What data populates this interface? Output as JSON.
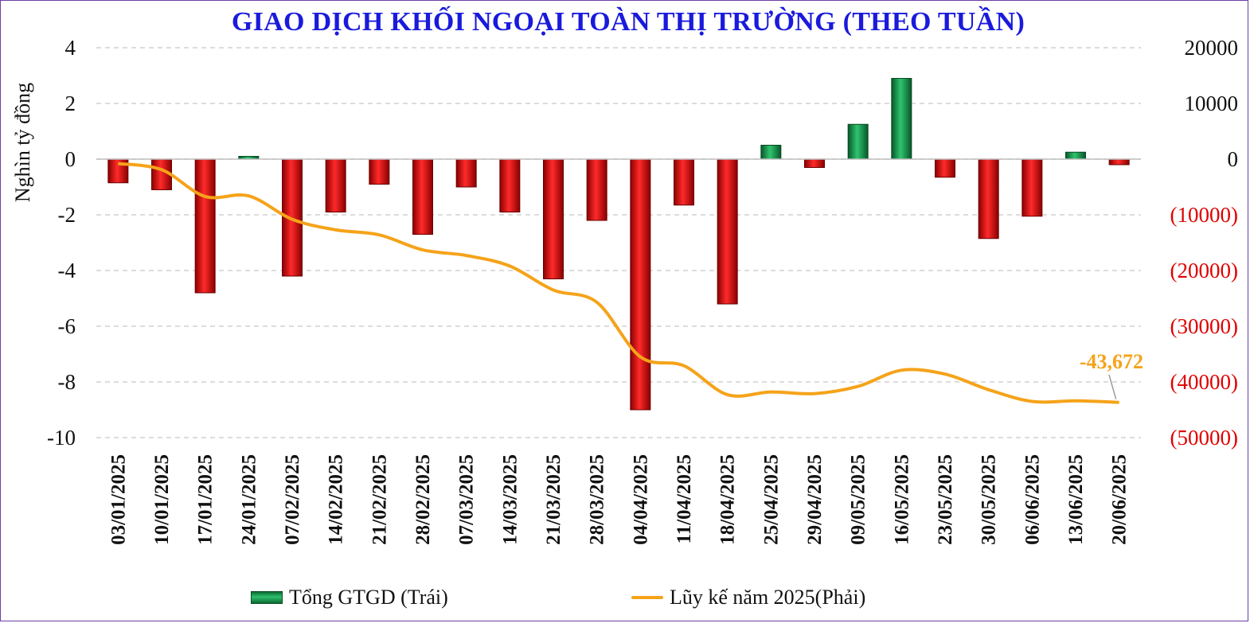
{
  "chart_data": {
    "type": "bar",
    "title": "GIAO DỊCH KHỐI NGOẠI TOÀN THỊ TRƯỜNG (THEO TUẦN)",
    "ylabel": "Nghìn tỷ đồng",
    "ylim_left": [
      -10,
      4
    ],
    "left_ticks": [
      "4",
      "2",
      "0",
      "-2",
      "-4",
      "-6",
      "-8",
      "-10"
    ],
    "ylim_right": [
      -50000,
      20000
    ],
    "right_ticks": [
      "20000",
      "10000",
      "0",
      "(10000)",
      "(20000)",
      "(30000)",
      "(40000)",
      "(50000)"
    ],
    "categories": [
      "03/01/2025",
      "10/01/2025",
      "17/01/2025",
      "24/01/2025",
      "07/02/2025",
      "14/02/2025",
      "21/02/2025",
      "28/02/2025",
      "07/03/2025",
      "14/03/2025",
      "21/03/2025",
      "28/03/2025",
      "04/04/2025",
      "11/04/2025",
      "18/04/2025",
      "25/04/2025",
      "29/04/2025",
      "09/05/2025",
      "16/05/2025",
      "23/05/2025",
      "30/05/2025",
      "06/06/2025",
      "13/06/2025",
      "20/06/2025"
    ],
    "series": [
      {
        "name": "Tổng GTGD (Trái)",
        "type": "bar",
        "axis": "left",
        "values": [
          -0.85,
          -1.1,
          -4.8,
          0.1,
          -4.2,
          -1.9,
          -0.9,
          -2.7,
          -1.0,
          -1.9,
          -4.3,
          -2.2,
          -9.0,
          -1.65,
          -5.2,
          0.5,
          -0.3,
          1.25,
          2.9,
          -0.65,
          -2.85,
          -2.05,
          0.25,
          -0.2
        ],
        "color_positive": "#13a04a",
        "color_negative": "#e8101a"
      },
      {
        "name": "Lũy kế năm 2025(Phải)",
        "type": "line",
        "axis": "right",
        "values": [
          -800,
          -1900,
          -6700,
          -6600,
          -10800,
          -12700,
          -13600,
          -16300,
          -17300,
          -19200,
          -23500,
          -25700,
          -35500,
          -37100,
          -42300,
          -41800,
          -42100,
          -40800,
          -37900,
          -38600,
          -41400,
          -43500,
          -43400,
          -43672
        ],
        "color": "#f5a31a"
      }
    ],
    "annotation": "-43,672",
    "grid": true,
    "legend_position": "bottom"
  }
}
